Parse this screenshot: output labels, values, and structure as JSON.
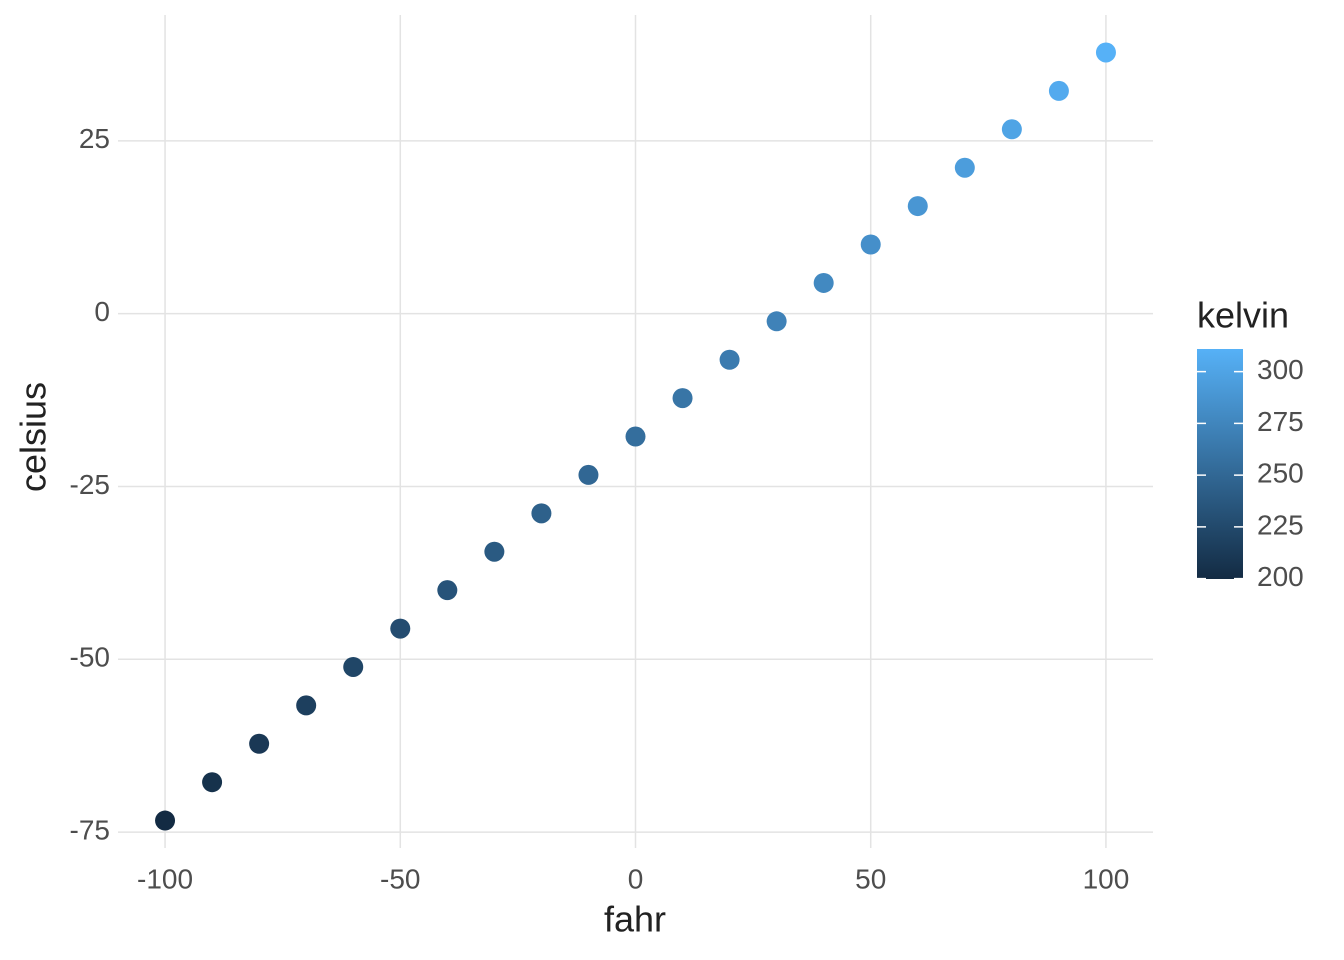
{
  "chart_data": {
    "type": "scatter",
    "x_label": "fahr",
    "y_label": "celsius",
    "x": [
      -100,
      -90,
      -80,
      -70,
      -60,
      -50,
      -40,
      -30,
      -20,
      -10,
      0,
      10,
      20,
      30,
      40,
      50,
      60,
      70,
      80,
      90,
      100
    ],
    "values": [
      -73.33,
      -67.78,
      -62.22,
      -56.67,
      -51.11,
      -45.56,
      -40,
      -34.44,
      -28.89,
      -23.33,
      -17.78,
      -12.22,
      -6.67,
      -1.11,
      4.44,
      10,
      15.56,
      21.11,
      26.67,
      32.22,
      37.78
    ],
    "color_values": [
      199.82,
      205.37,
      210.93,
      216.48,
      222.04,
      227.59,
      233.15,
      238.71,
      244.26,
      249.82,
      255.37,
      260.93,
      266.48,
      272.04,
      277.59,
      283.15,
      288.71,
      294.26,
      299.82,
      305.37,
      310.93
    ],
    "xlim": [
      -110,
      110
    ],
    "xticks": [
      -100,
      -50,
      0,
      50,
      100
    ],
    "ylim": [
      -77.3,
      43.2
    ],
    "yticks": [
      -75,
      -50,
      -25,
      0,
      25
    ],
    "grid": true,
    "colorbar": {
      "title": "kelvin",
      "low": "#132b43",
      "high": "#56b1f7",
      "lim": [
        199.82,
        310.93
      ],
      "ticks": [
        200,
        225,
        250,
        275,
        300
      ]
    }
  }
}
